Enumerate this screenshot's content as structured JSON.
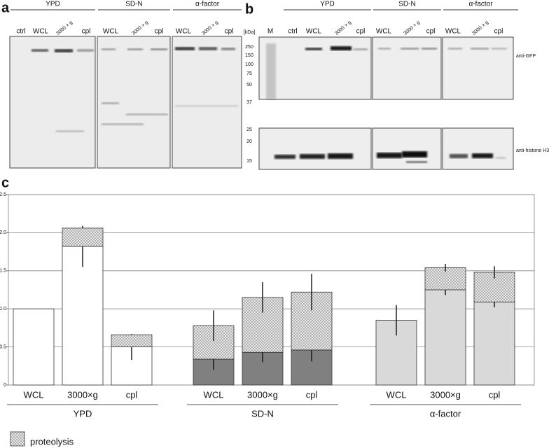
{
  "blots": {
    "a": {
      "label": "a",
      "groups": [
        "YPD",
        "SD-N",
        "α-factor"
      ],
      "lanes": [
        "ctrl",
        "WCL",
        "3000 × g",
        "cpl",
        "WCL",
        "3000 × g",
        "cpl",
        "WCL",
        "3000 × g",
        "cpl"
      ],
      "unit": "[kDa]",
      "markers": [
        250,
        150,
        100,
        75,
        50,
        37,
        25,
        20,
        15
      ]
    },
    "b": {
      "label": "b",
      "groups": [
        "YPD",
        "SD-N",
        "α-factor"
      ],
      "lanes": [
        "M",
        "ctrl",
        "WCL",
        "3000 × g",
        "cpl",
        "WCL",
        "3000 × g",
        "cpl",
        "WCL",
        "3000 × g",
        "cpl"
      ],
      "antibodies": [
        "anti-GFP",
        "anti-histone H3"
      ]
    }
  },
  "chart_data": {
    "type": "stacked-bar",
    "panel_label": "c",
    "categories": [
      "WCL",
      "3000×g",
      "cpl",
      "WCL",
      "3000×g",
      "cpl",
      "WCL",
      "3000×g",
      "cpl"
    ],
    "groups": [
      "YPD",
      "SD-N",
      "α-factor"
    ],
    "series": [
      {
        "values": [
          1.0,
          1.82,
          0.5,
          0.34,
          0.43,
          0.46,
          0.85,
          1.25,
          1.09
        ],
        "errors": [
          null,
          0.27,
          0.17,
          0.14,
          0.13,
          0.15,
          0.2,
          0.07,
          0.07
        ],
        "colors": [
          "#ffffff",
          "#ffffff",
          "#ffffff",
          "#808080",
          "#808080",
          "#808080",
          "#d9d9d9",
          "#d9d9d9",
          "#d9d9d9"
        ]
      },
      {
        "name": "proteolysis",
        "pattern": "crosshatch",
        "values": [
          null,
          0.24,
          0.16,
          0.44,
          0.72,
          0.76,
          null,
          0.29,
          0.39
        ],
        "errors": [
          null,
          null,
          null,
          0.2,
          0.2,
          0.24,
          null,
          0.05,
          0.08
        ]
      }
    ],
    "ylim": [
      0,
      2.5
    ],
    "yticks": [
      0,
      0.5,
      {
        "value": 1,
        "label": "1.0"
      },
      1.5,
      {
        "value": 2,
        "label": "2.0"
      },
      2.5
    ],
    "grid": true
  }
}
